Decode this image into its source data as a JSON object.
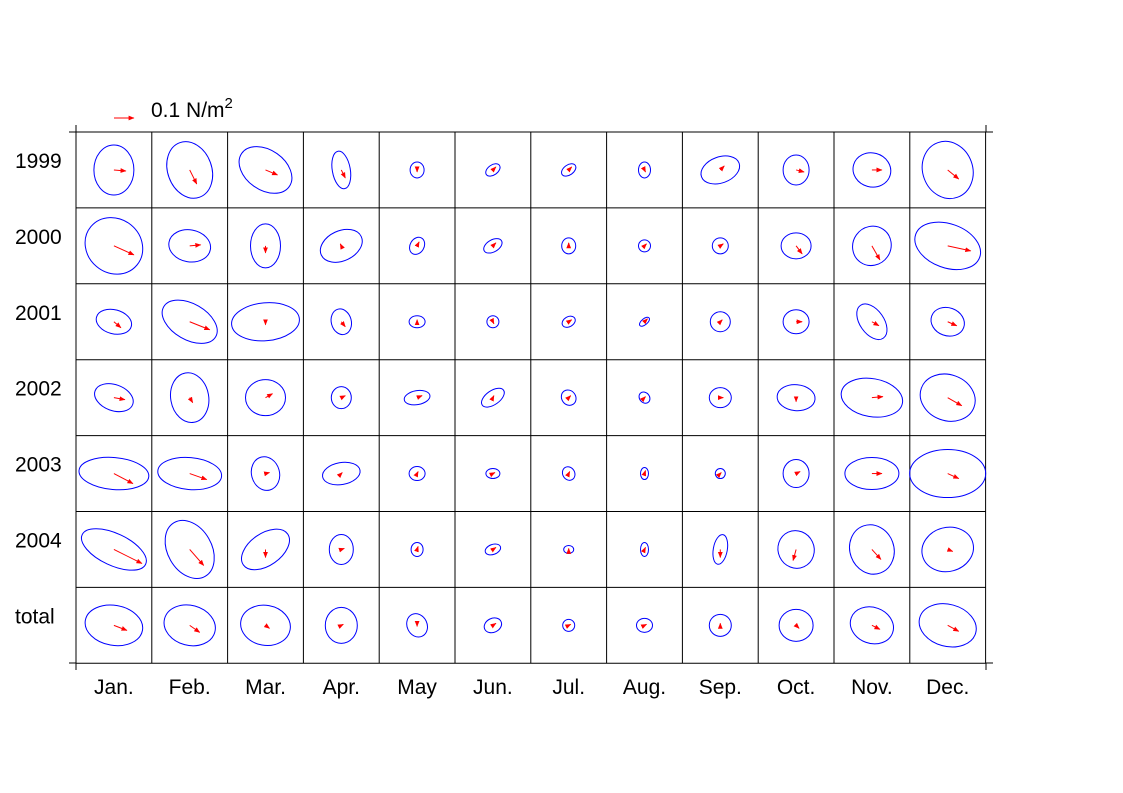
{
  "chart_data": {
    "type": "grid of stress variance ellipses with mean vectors",
    "legend": {
      "text": "0.1 N/m",
      "superscript": "2",
      "color": "#ff0000",
      "magnitude": 0.1
    },
    "columns": [
      "Jan.",
      "Feb.",
      "Mar.",
      "Apr.",
      "May",
      "Jun.",
      "Jul.",
      "Aug.",
      "Sep.",
      "Oct.",
      "Nov.",
      "Dec."
    ],
    "rows": [
      "1999",
      "2000",
      "2001",
      "2002",
      "2003",
      "2004",
      "total"
    ],
    "ellipse_color": "#0000ff",
    "vector_color": "#ff0000",
    "cells": [
      [
        [
          20,
          25,
          0,
          0.06,
          -0.005
        ],
        [
          22,
          29,
          -20,
          0.035,
          -0.07
        ],
        [
          29,
          20,
          35,
          0.06,
          -0.025
        ],
        [
          9,
          19,
          -10,
          0.02,
          -0.04
        ],
        [
          7,
          8,
          0,
          0,
          -0.01
        ],
        [
          8,
          5,
          -35,
          0.015,
          0.015
        ],
        [
          8,
          5,
          -35,
          0.015,
          0.015
        ],
        [
          6,
          8,
          0,
          0.005,
          -0.01
        ],
        [
          20,
          13,
          -20,
          0.02,
          0.02
        ],
        [
          13,
          15,
          0,
          0.04,
          -0.01
        ],
        [
          19,
          17,
          15,
          0.05,
          0
        ],
        [
          25,
          29,
          -20,
          0.055,
          -0.045
        ]
      ],
      [
        [
          30,
          27,
          40,
          0.1,
          -0.045
        ],
        [
          21,
          16,
          10,
          0.055,
          0.005
        ],
        [
          15,
          22,
          0,
          0,
          -0.035
        ],
        [
          22,
          15,
          -25,
          -0.005,
          0.01
        ],
        [
          7,
          9,
          30,
          0.01,
          0.02
        ],
        [
          10,
          6,
          -30,
          0.015,
          0.015
        ],
        [
          7,
          8,
          0,
          0,
          0.015
        ],
        [
          6,
          6,
          0,
          0.01,
          0.01
        ],
        [
          8,
          8,
          0,
          0.015,
          0.01
        ],
        [
          15,
          13,
          0,
          0.03,
          -0.04
        ],
        [
          19,
          20,
          35,
          0.04,
          -0.07
        ],
        [
          34,
          22,
          20,
          0.115,
          -0.025
        ]
      ],
      [
        [
          18,
          12,
          15,
          0.035,
          -0.03
        ],
        [
          30,
          18,
          30,
          0.1,
          -0.04
        ],
        [
          34,
          19,
          -5,
          0,
          -0.015
        ],
        [
          10,
          13,
          -15,
          0.02,
          -0.025
        ],
        [
          8,
          6,
          0,
          0,
          0.01
        ],
        [
          6,
          6,
          0,
          0.005,
          -0.01
        ],
        [
          7,
          5,
          -30,
          0.015,
          0.01
        ],
        [
          6,
          3,
          -40,
          0.015,
          0.015
        ],
        [
          10,
          10,
          0,
          0.01,
          0.01
        ],
        [
          13,
          12,
          0,
          0.03,
          0
        ],
        [
          12,
          20,
          -35,
          0.035,
          -0.02
        ],
        [
          17,
          14,
          20,
          0.045,
          -0.02
        ]
      ],
      [
        [
          20,
          13,
          20,
          0.055,
          -0.01
        ],
        [
          19,
          25,
          -10,
          0.015,
          -0.025
        ],
        [
          20,
          18,
          0,
          0.035,
          0.02
        ],
        [
          10,
          11,
          0,
          0.02,
          0.01
        ],
        [
          13,
          7,
          -10,
          0.025,
          0.01
        ],
        [
          13,
          7,
          -35,
          0.005,
          0.01
        ],
        [
          7,
          8,
          -35,
          0.01,
          0.01
        ],
        [
          5,
          6,
          -40,
          0.005,
          0.005
        ],
        [
          11,
          10,
          0,
          0.015,
          0
        ],
        [
          19,
          13,
          5,
          0,
          -0.02
        ],
        [
          31,
          19,
          10,
          0.055,
          0.005
        ],
        [
          28,
          23,
          20,
          0.07,
          -0.04
        ]
      ],
      [
        [
          35,
          16,
          5,
          0.095,
          -0.05
        ],
        [
          32,
          16,
          5,
          0.085,
          -0.03
        ],
        [
          14,
          17,
          -15,
          0.02,
          0.005
        ],
        [
          19,
          11,
          -10,
          0.005,
          0.005
        ],
        [
          8,
          7,
          0,
          0.005,
          0.01
        ],
        [
          7,
          5,
          0,
          0.01,
          0.005
        ],
        [
          6,
          7,
          -30,
          0.005,
          0.01
        ],
        [
          4,
          6,
          0,
          0.005,
          0.015
        ],
        [
          5,
          5,
          0,
          0.005,
          0.005
        ],
        [
          13,
          14,
          0,
          0.02,
          0.01
        ],
        [
          27,
          16,
          0,
          0.05,
          0
        ],
        [
          38,
          24,
          0,
          0.055,
          -0.025
        ]
      ],
      [
        [
          35,
          16,
          25,
          0.14,
          -0.07
        ],
        [
          22,
          31,
          -30,
          0.07,
          -0.08
        ],
        [
          27,
          16,
          -35,
          0,
          -0.04
        ],
        [
          12,
          15,
          0,
          0.015,
          0.005
        ],
        [
          6,
          7,
          0,
          0.005,
          0.015
        ],
        [
          8,
          5,
          -20,
          0.015,
          0.01
        ],
        [
          5,
          4,
          0,
          0,
          0.005
        ],
        [
          4,
          7,
          0,
          0.005,
          0.01
        ],
        [
          7,
          15,
          10,
          0,
          -0.04
        ],
        [
          18,
          19,
          -25,
          -0.015,
          -0.055
        ],
        [
          22,
          25,
          -20,
          0.045,
          -0.05
        ],
        [
          26,
          22,
          -15,
          0.025,
          -0.01
        ]
      ],
      [
        [
          29,
          20,
          10,
          0.065,
          -0.025
        ],
        [
          26,
          20,
          15,
          0.05,
          -0.035
        ],
        [
          25,
          20,
          10,
          0.02,
          -0.015
        ],
        [
          16,
          18,
          0,
          0.01,
          0.005
        ],
        [
          10,
          12,
          -25,
          0,
          -0.005
        ],
        [
          9,
          7,
          -25,
          0.015,
          0.01
        ],
        [
          6,
          6,
          0,
          0.01,
          0.005
        ],
        [
          8,
          7,
          0,
          0.01,
          0.005
        ],
        [
          11,
          11,
          0,
          0,
          0.01
        ],
        [
          17,
          16,
          0,
          0.015,
          -0.015
        ],
        [
          22,
          18,
          20,
          0.04,
          -0.02
        ],
        [
          29,
          21,
          15,
          0.055,
          -0.03
        ]
      ]
    ]
  }
}
